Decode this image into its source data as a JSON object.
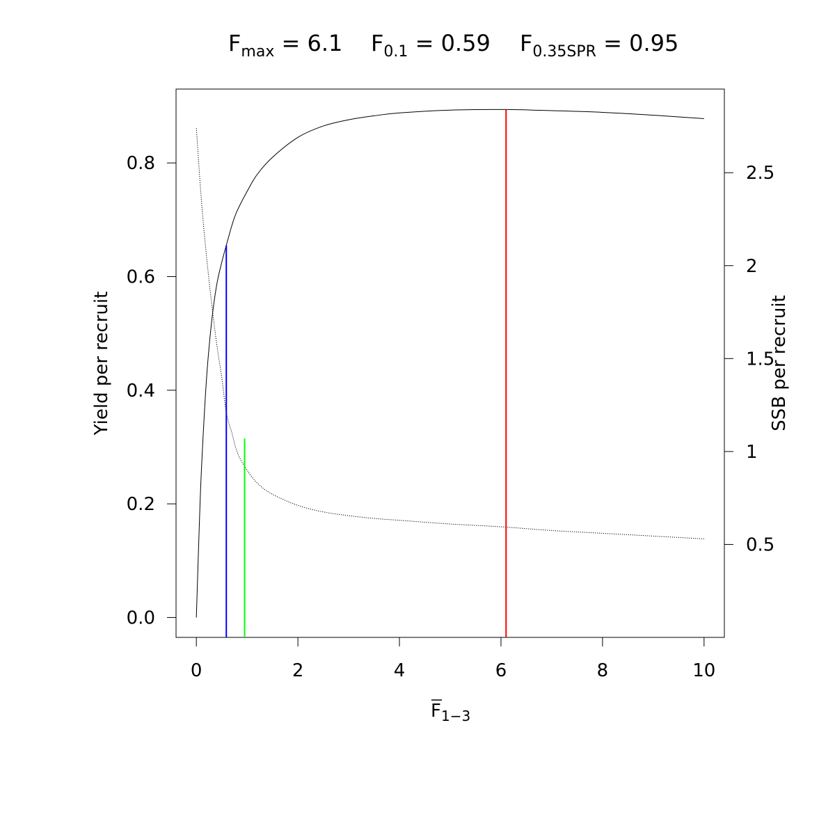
{
  "chart_data": {
    "type": "line",
    "title": {
      "parts": [
        {
          "main": "F",
          "sub": "max",
          "rest": " = 6.1"
        },
        {
          "main": "F",
          "sub": "0.1",
          "rest": " = 0.59"
        },
        {
          "main": "F",
          "sub": "0.35SPR",
          "rest": " = 0.95"
        }
      ]
    },
    "xlabel": {
      "main": "F",
      "sub": "1−3"
    },
    "ylabel_left": "Yield per recruit",
    "ylabel_right": "SSB per recruit",
    "xlim": [
      -0.4,
      10.4
    ],
    "ylim_left": [
      -0.035,
      0.93
    ],
    "ylim_right": [
      0,
      2.95
    ],
    "x_ticks": [
      0,
      2,
      4,
      6,
      8,
      10
    ],
    "x_tick_labels": [
      "0",
      "2",
      "4",
      "6",
      "8",
      "10"
    ],
    "y_left_ticks": [
      0.0,
      0.2,
      0.4,
      0.6,
      0.8
    ],
    "y_left_tick_labels": [
      "0.0",
      "0.2",
      "0.4",
      "0.6",
      "0.8"
    ],
    "y_right_ticks": [
      0.5,
      1.0,
      1.5,
      2.0,
      2.5
    ],
    "y_right_tick_labels": [
      "0.5",
      "1",
      "1.5",
      "2",
      "2.5"
    ],
    "grid": false,
    "series": [
      {
        "axis": "left",
        "color": "#000000",
        "style": "solid",
        "x": [
          0,
          0.05,
          0.1,
          0.2,
          0.3,
          0.4,
          0.5,
          0.59,
          0.7,
          0.8,
          1.0,
          1.2,
          1.5,
          2.0,
          2.5,
          3.0,
          3.5,
          4.0,
          5.0,
          6.1,
          7.0,
          8.0,
          9.0,
          10.0
        ],
        "y": [
          0.0,
          0.14,
          0.26,
          0.42,
          0.52,
          0.585,
          0.625,
          0.655,
          0.69,
          0.715,
          0.75,
          0.78,
          0.81,
          0.845,
          0.865,
          0.876,
          0.883,
          0.888,
          0.893,
          0.894,
          0.892,
          0.889,
          0.884,
          0.878
        ]
      },
      {
        "axis": "right",
        "color": "#000000",
        "style": "dotted",
        "x": [
          0,
          0.1,
          0.2,
          0.3,
          0.4,
          0.5,
          0.59,
          0.7,
          0.8,
          0.95,
          1.2,
          1.5,
          2.0,
          2.5,
          3.0,
          3.5,
          4.0,
          5.0,
          6.0,
          7.0,
          8.0,
          9.0,
          10.0
        ],
        "y": [
          2.74,
          2.35,
          2.05,
          1.8,
          1.58,
          1.4,
          1.21,
          1.1,
          1.0,
          0.92,
          0.83,
          0.77,
          0.71,
          0.675,
          0.655,
          0.64,
          0.63,
          0.61,
          0.595,
          0.575,
          0.56,
          0.545,
          0.53
        ]
      }
    ],
    "reference_lines": [
      {
        "name": "Fmax",
        "x": 6.1,
        "y_top": 0.894,
        "color": "#ff0000"
      },
      {
        "name": "F0.1",
        "x": 0.59,
        "y_top": 0.655,
        "color": "#0000ff"
      },
      {
        "name": "F0.35SPR",
        "x": 0.95,
        "y_top": 0.315,
        "color": "#00ff00"
      }
    ]
  }
}
